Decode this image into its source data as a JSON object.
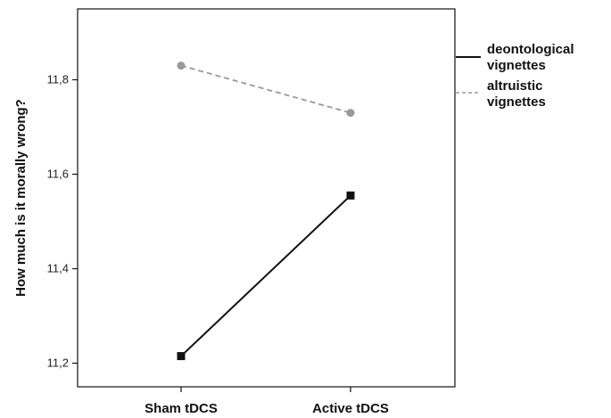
{
  "chart_data": {
    "type": "line",
    "categories": [
      "Sham tDCS",
      "Active tDCS"
    ],
    "ylabel": "How much is it morally wrong?",
    "ylim": [
      11.15,
      11.95
    ],
    "yticks": [
      "11,2",
      "11,4",
      "11,6",
      "11,8"
    ],
    "ytick_values": [
      11.2,
      11.4,
      11.6,
      11.8
    ],
    "grid": false,
    "legend_placement": "right",
    "series": [
      {
        "name_lines": [
          "deontological",
          "vignettes"
        ],
        "values": [
          11.215,
          11.555
        ],
        "color": "#111111",
        "marker": "square",
        "dashed": false
      },
      {
        "name_lines": [
          "altruistic",
          "vignettes"
        ],
        "values": [
          11.83,
          11.73
        ],
        "color": "#999999",
        "marker": "circle",
        "dashed": true
      }
    ]
  }
}
